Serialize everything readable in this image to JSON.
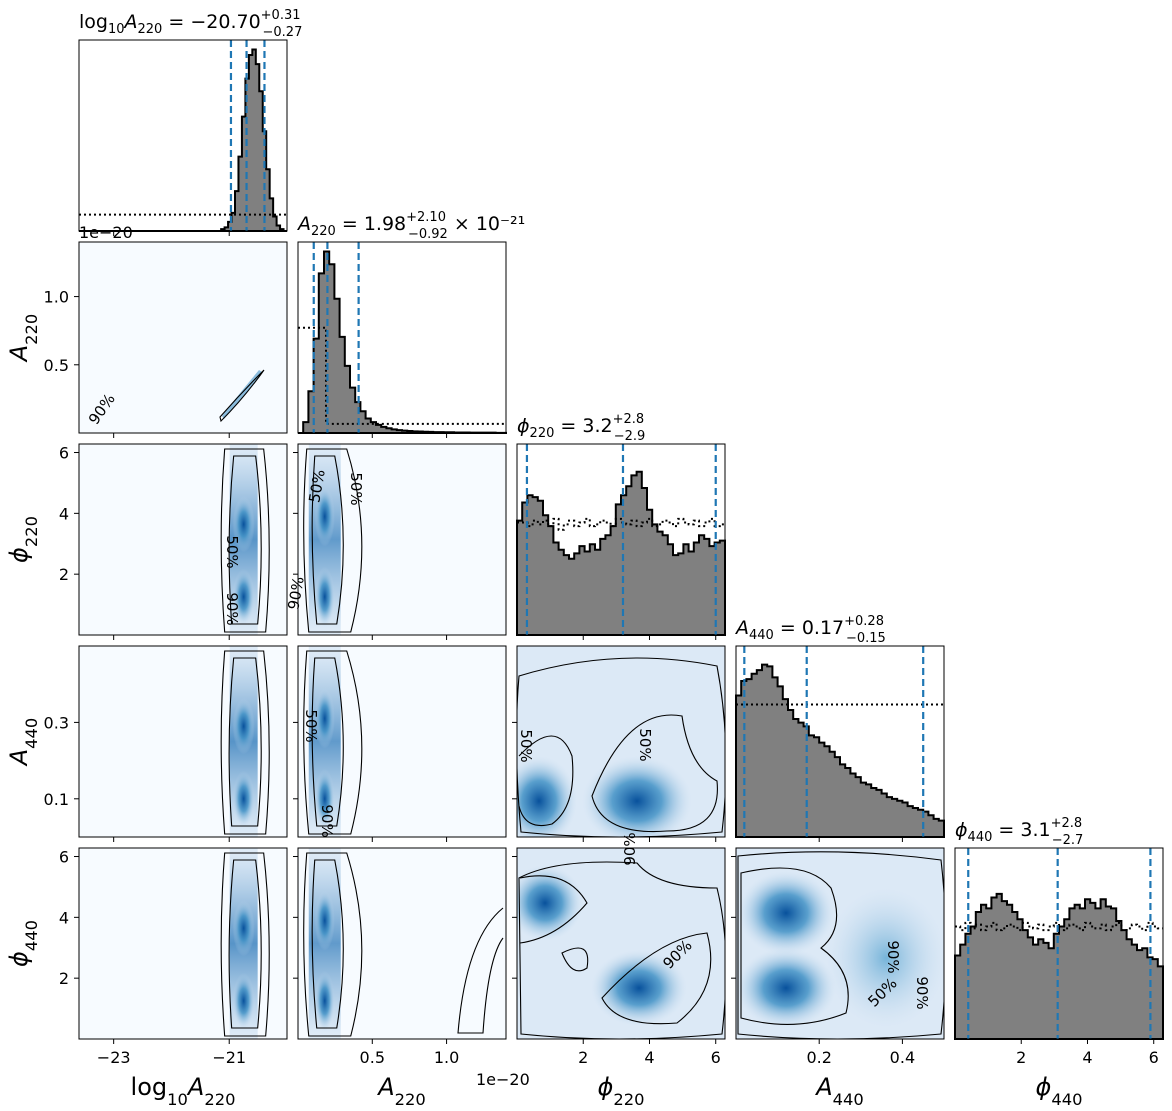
{
  "chart_data": {
    "type": "corner",
    "title": "",
    "params": [
      {
        "key": "log10A220",
        "symbol": "log",
        "sub": "10",
        "sym2": "A",
        "sub2": "220",
        "range": [
          -23.6,
          -20.0
        ],
        "ticks": [
          -23,
          -21
        ],
        "ticklabels": [
          "−23",
          "−21"
        ],
        "offset": "",
        "summary": {
          "median": "−20.70",
          "plus": "+0.31",
          "minus": "−0.27",
          "exp": ""
        }
      },
      {
        "key": "A220",
        "symbol": "A",
        "sub": "220",
        "range": [
          0.0,
          1.4
        ],
        "ticks": [
          0.5,
          1.0
        ],
        "ticklabels": [
          "0.5",
          "1.0"
        ],
        "offset": "1e−20",
        "summary": {
          "median": "1.98",
          "plus": "+2.10",
          "minus": "−0.92",
          "exp": "× 10⁻²¹"
        }
      },
      {
        "key": "phi220",
        "symbol": "ϕ",
        "sub": "220",
        "range": [
          0.0,
          6.28
        ],
        "ticks": [
          2,
          4,
          6
        ],
        "ticklabels": [
          "2",
          "4",
          "6"
        ],
        "offset": "",
        "summary": {
          "median": "3.2",
          "plus": "+2.8",
          "minus": "−2.9",
          "exp": ""
        }
      },
      {
        "key": "A440",
        "symbol": "A",
        "sub": "440",
        "range": [
          0.0,
          0.5
        ],
        "ticks": [
          0.1,
          0.3
        ],
        "ticklabels": [
          "0.1",
          "0.3"
        ],
        "xticks": [
          0.2,
          0.4
        ],
        "xticklabels": [
          "0.2",
          "0.4"
        ],
        "offset": "",
        "summary": {
          "median": "0.17",
          "plus": "+0.28",
          "minus": "−0.15",
          "exp": ""
        }
      },
      {
        "key": "phi440",
        "symbol": "ϕ",
        "sub": "440",
        "range": [
          0.0,
          6.28
        ],
        "ticks": [
          2,
          4,
          6
        ],
        "ticklabels": [
          "2",
          "4",
          "6"
        ],
        "yticks": [
          2,
          4,
          6
        ],
        "yticklabels": [
          "2",
          "4",
          "6"
        ],
        "offset": "",
        "summary": {
          "median": "3.1",
          "plus": "+2.8",
          "minus": "−2.7",
          "exp": ""
        }
      }
    ],
    "quantiles": {
      "log10A220": [
        -20.97,
        -20.7,
        -20.39
      ],
      "A220": [
        0.106,
        0.198,
        0.408
      ],
      "phi220": [
        0.3,
        3.2,
        6.0
      ],
      "A440": [
        0.02,
        0.17,
        0.45
      ],
      "phi440": [
        0.4,
        3.1,
        5.9
      ]
    },
    "histograms": {
      "log10A220": [
        0,
        0,
        0,
        0,
        0,
        0,
        0,
        0,
        0,
        0,
        0,
        0,
        0,
        0,
        0,
        0,
        0,
        0,
        0,
        0,
        0,
        0,
        0,
        0,
        0,
        0,
        0,
        0,
        0,
        0,
        0,
        0,
        0,
        0,
        0,
        0,
        0,
        0,
        0,
        0,
        0,
        0.01,
        0.02,
        0.05,
        0.1,
        0.22,
        0.41,
        0.63,
        0.84,
        0.97,
        1.0,
        0.92,
        0.77,
        0.55,
        0.34,
        0.18,
        0.08,
        0.03,
        0.01,
        0
      ],
      "A220": [
        0.0,
        0.06,
        0.23,
        0.52,
        0.88,
        1.0,
        0.93,
        0.74,
        0.53,
        0.37,
        0.25,
        0.17,
        0.12,
        0.08,
        0.06,
        0.045,
        0.034,
        0.026,
        0.02,
        0.016,
        0.013,
        0.011,
        0.009,
        0.008,
        0.007,
        0.006,
        0.005,
        0.005,
        0.004,
        0.004,
        0.003,
        0.003,
        0.003,
        0.002,
        0.002,
        0.002,
        0.002,
        0.002,
        0.001,
        0.001
      ],
      "phi220": [
        0.63,
        0.73,
        0.77,
        0.76,
        0.74,
        0.66,
        0.6,
        0.51,
        0.47,
        0.44,
        0.42,
        0.45,
        0.49,
        0.46,
        0.5,
        0.47,
        0.53,
        0.55,
        0.6,
        0.72,
        0.77,
        0.82,
        0.88,
        0.9,
        0.81,
        0.69,
        0.61,
        0.57,
        0.55,
        0.5,
        0.44,
        0.45,
        0.5,
        0.46,
        0.51,
        0.55,
        0.53,
        0.49,
        0.51,
        0.52
      ],
      "A440": [
        0.78,
        0.86,
        0.87,
        0.9,
        0.92,
        0.95,
        0.94,
        0.88,
        0.83,
        0.76,
        0.7,
        0.65,
        0.63,
        0.61,
        0.56,
        0.55,
        0.52,
        0.5,
        0.47,
        0.44,
        0.4,
        0.38,
        0.35,
        0.33,
        0.3,
        0.29,
        0.27,
        0.26,
        0.24,
        0.22,
        0.21,
        0.2,
        0.19,
        0.17,
        0.16,
        0.15,
        0.14,
        0.12,
        0.1,
        0.09
      ],
      "phi440": [
        0.46,
        0.52,
        0.58,
        0.62,
        0.7,
        0.74,
        0.72,
        0.78,
        0.8,
        0.76,
        0.74,
        0.7,
        0.66,
        0.6,
        0.56,
        0.52,
        0.55,
        0.53,
        0.5,
        0.58,
        0.62,
        0.66,
        0.72,
        0.74,
        0.72,
        0.77,
        0.75,
        0.72,
        0.77,
        0.73,
        0.72,
        0.65,
        0.6,
        0.55,
        0.52,
        0.49,
        0.5,
        0.45,
        0.44,
        0.4
      ]
    },
    "prior_level": {
      "log10A220": 0.09,
      "A220": [
        0.58,
        0.05
      ],
      "phi220": [
        0.62,
        0.62,
        0.6,
        0.63,
        0.61,
        0.63,
        0.6,
        0.64,
        0.58,
        0.61,
        0.63,
        0.6,
        0.62,
        0.64,
        0.6,
        0.61,
        0.63,
        0.62,
        0.6,
        0.64,
        0.62,
        0.61,
        0.63,
        0.6,
        0.62,
        0.64,
        0.6,
        0.61,
        0.63,
        0.62,
        0.6,
        0.64,
        0.62,
        0.61,
        0.63,
        0.6,
        0.62,
        0.64,
        0.6,
        0.61
      ],
      "A440": 0.73,
      "phi440": [
        0.62,
        0.6,
        0.64,
        0.61,
        0.63,
        0.6,
        0.62,
        0.64,
        0.6,
        0.61,
        0.63,
        0.62,
        0.6,
        0.64,
        0.62,
        0.61,
        0.63,
        0.6,
        0.62,
        0.64,
        0.6,
        0.61,
        0.63,
        0.62,
        0.6,
        0.64,
        0.62,
        0.61,
        0.63,
        0.6,
        0.62,
        0.64,
        0.6,
        0.61,
        0.63,
        0.62,
        0.6,
        0.64,
        0.62,
        0.61
      ]
    },
    "contour_labels": [
      "50%",
      "90%"
    ],
    "colors": {
      "hist_fill": "#808080",
      "hist_edge": "#000000",
      "quantile": "#1f77b4",
      "density_light": "#f7fbff",
      "density_mid": "#6baed6",
      "density_dark": "#08306b"
    }
  }
}
